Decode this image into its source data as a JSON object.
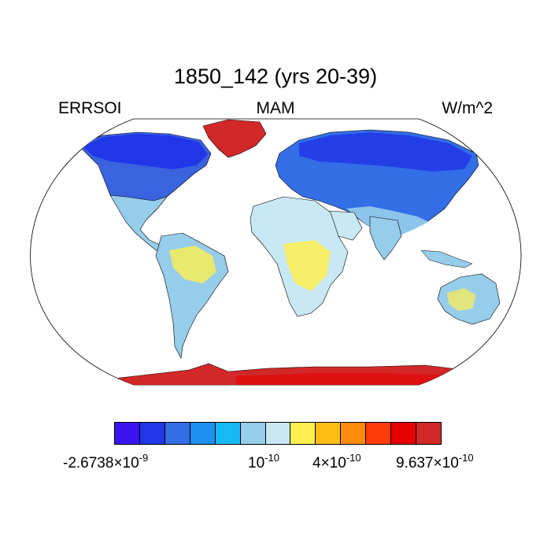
{
  "title": "1850_142 (yrs 20-39)",
  "left_label": "ERRSOI",
  "center_label": "MAM",
  "right_label": "W/m^2",
  "colorbar": {
    "colors": [
      "#3a14f0",
      "#2136e6",
      "#336ee6",
      "#1e90f0",
      "#14b9f5",
      "#96cdeb",
      "#c8e8f5",
      "#fff050",
      "#fcbe14",
      "#ff8c0a",
      "#ff3c0a",
      "#e60000",
      "#d22828"
    ],
    "labels": [
      {
        "base": "-2.6738×10",
        "exp": "-9"
      },
      {
        "base": "10",
        "exp": "-10"
      },
      {
        "base": "4×10",
        "exp": "-10"
      },
      {
        "base": "9.637×10",
        "exp": "-10"
      }
    ]
  },
  "map": {
    "projection": "robinson",
    "ocean_color": "#ffffff",
    "outline_color": "#000000"
  }
}
